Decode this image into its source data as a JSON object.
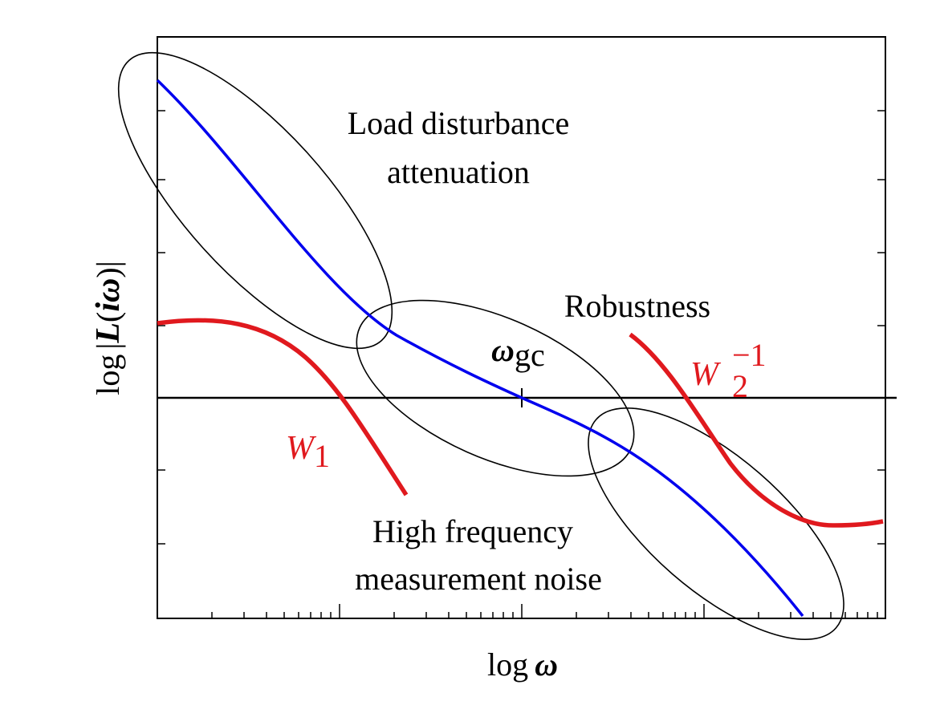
{
  "labels": {
    "y_axis_prefix": "log",
    "y_axis_L": "L",
    "y_axis_arg_open": "(",
    "y_axis_i": "i",
    "y_axis_omega": "ω",
    "y_axis_arg_close": ")",
    "x_axis_prefix": "log",
    "x_axis_omega": "ω",
    "load_line1": "Load disturbance",
    "load_line2": "attenuation",
    "robustness": "Robustness",
    "hf_line1": "High frequency",
    "hf_line2": "measurement noise",
    "omega_gc_symbol": "ω",
    "omega_gc_sub": "gc",
    "w1_letter": "W",
    "w1_sub": "1",
    "w2_letter": "W",
    "w2_sub": "2",
    "w2_sup": "−1"
  },
  "colors": {
    "loop_gain": "#0000ee",
    "bounds": "#e0191e",
    "ink": "#000000"
  }
}
